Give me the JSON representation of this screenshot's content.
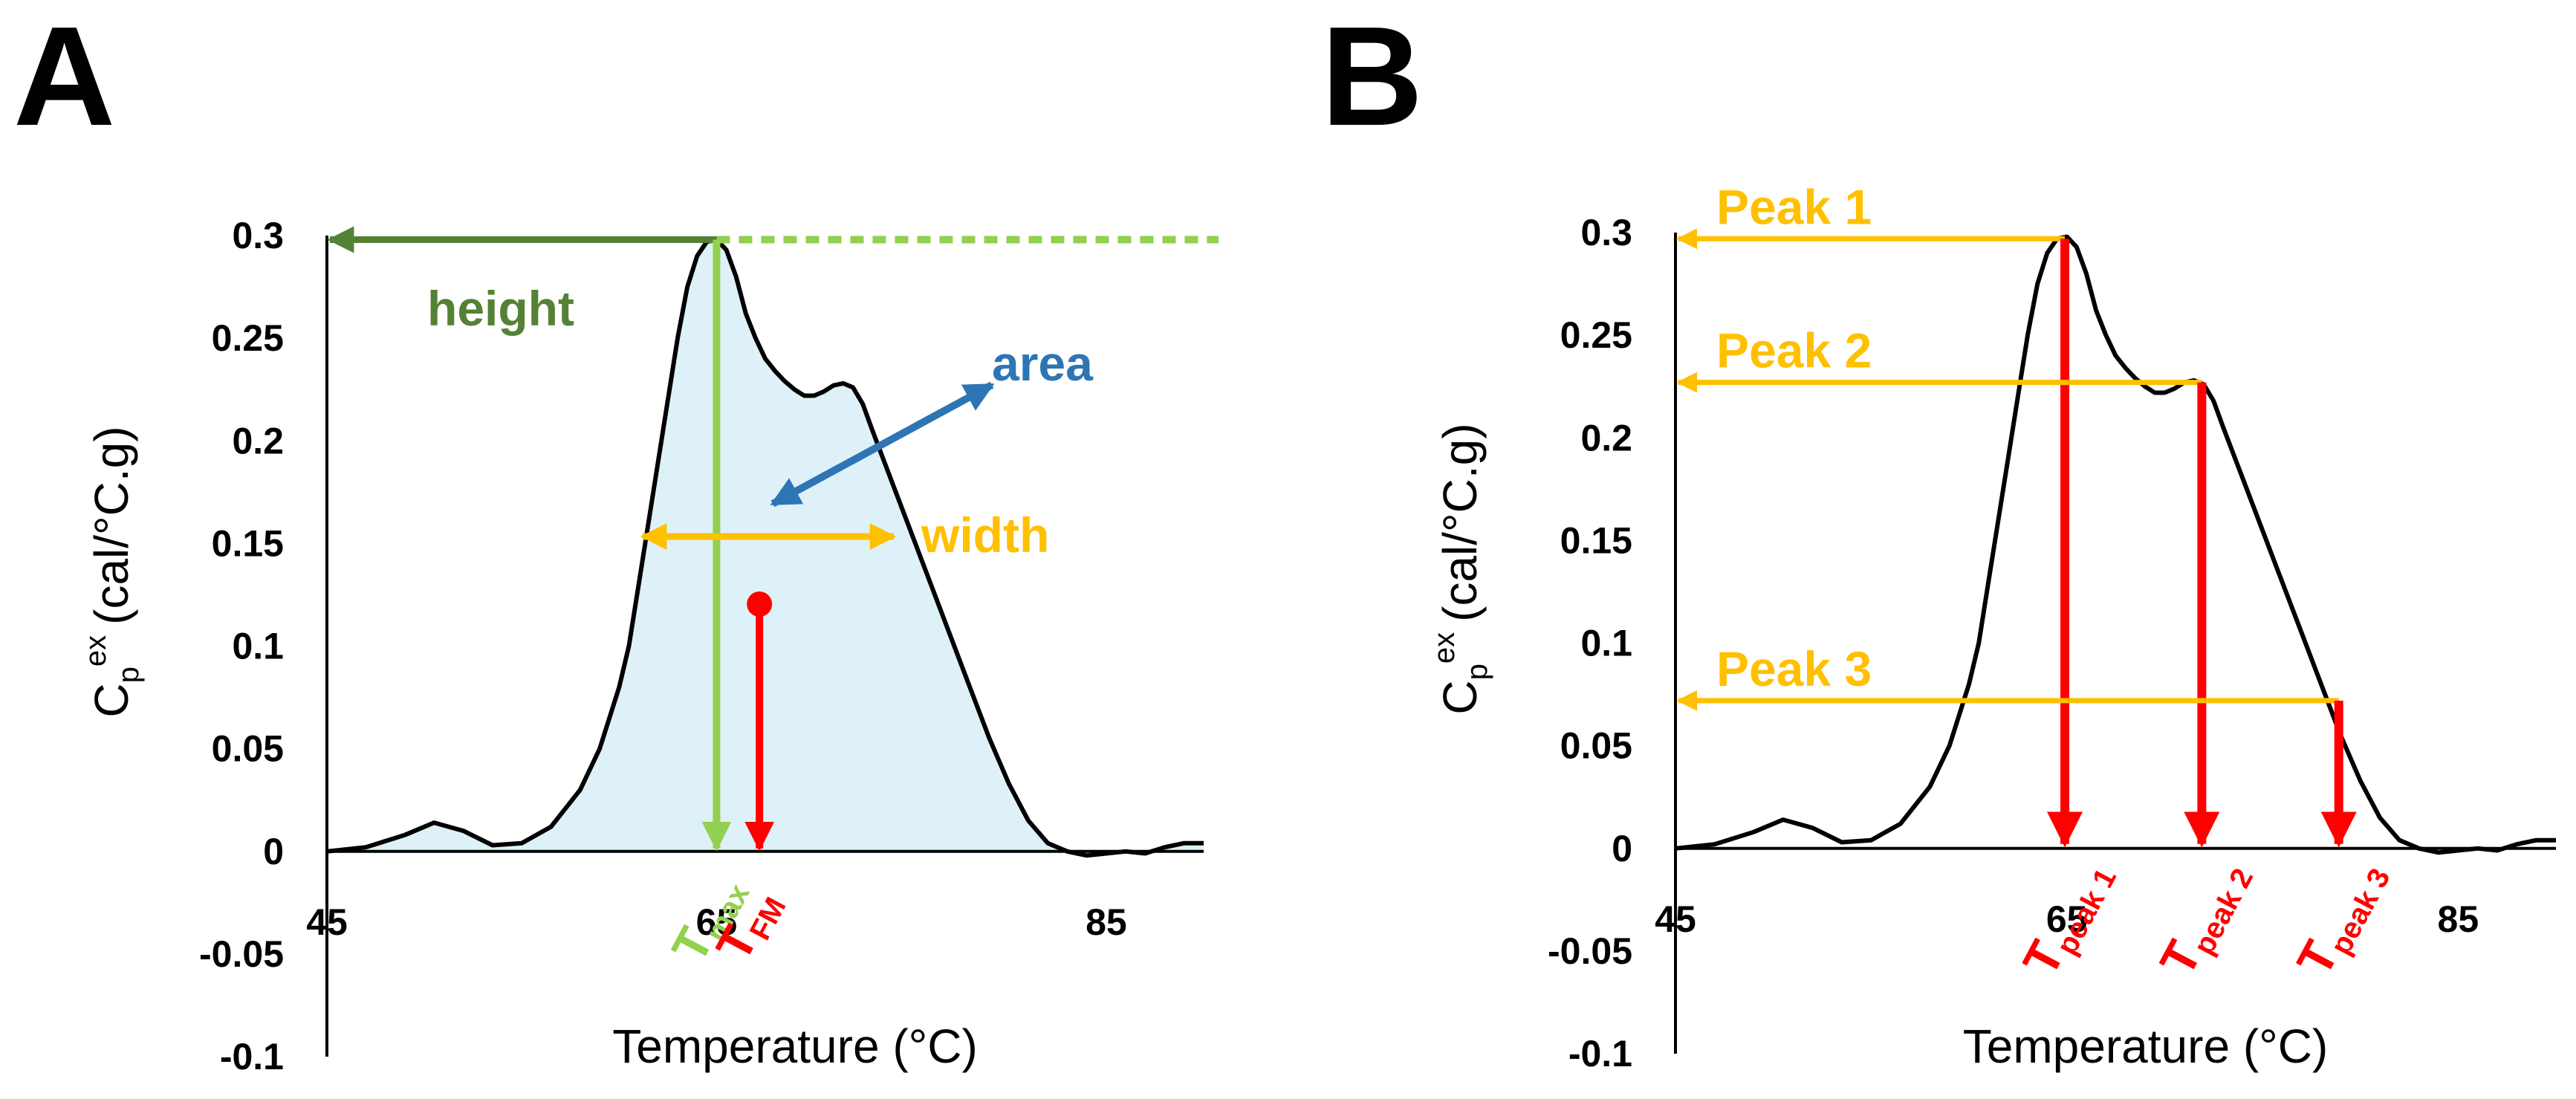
{
  "colors": {
    "curve": "#000000",
    "area_fill": "#dff1f8",
    "height": "#548235",
    "tmax": "#92d050",
    "area": "#2e75b6",
    "width": "#ffc000",
    "red": "#ff0000",
    "peak": "#ffc000"
  },
  "chart_data": [
    {
      "type": "line",
      "panel_label": "A",
      "xlabel": "Temperature (°C)",
      "ylabel": {
        "main": "C",
        "sub": "p",
        "sup": "ex",
        "units": "(cal/°C.g)"
      },
      "xlim": [
        45,
        90
      ],
      "ylim": [
        -0.1,
        0.3
      ],
      "xticks": [
        {
          "value": 45,
          "label": "45"
        },
        {
          "value": 65,
          "label": "65"
        },
        {
          "value": 85,
          "label": "85"
        }
      ],
      "yticks": [
        {
          "value": 0.3,
          "label": "0.3"
        },
        {
          "value": 0.25,
          "label": "0.25"
        },
        {
          "value": 0.2,
          "label": "0.2"
        },
        {
          "value": 0.15,
          "label": "0.15"
        },
        {
          "value": 0.1,
          "label": "0.1"
        },
        {
          "value": 0.05,
          "label": "0.05"
        },
        {
          "value": 0,
          "label": "0"
        },
        {
          "value": -0.05,
          "label": "-0.05"
        },
        {
          "value": -0.1,
          "label": "-0.1"
        }
      ],
      "grid": false,
      "series": [
        {
          "x": [
            45,
            47,
            49,
            50.5,
            52,
            53.5,
            55,
            56.5,
            58,
            59,
            60,
            60.5,
            61,
            61.5,
            62,
            62.5,
            63,
            63.5,
            64,
            64.5,
            65,
            65.5,
            66,
            66.5,
            67,
            67.5,
            68,
            68.5,
            69,
            69.5,
            70,
            70.5,
            71,
            71.5,
            72,
            72.5,
            73,
            74,
            75,
            76,
            77,
            78,
            79,
            80,
            81,
            82,
            83,
            84,
            85,
            86,
            87,
            88,
            89,
            90
          ],
          "y": [
            0,
            0.002,
            0.008,
            0.014,
            0.01,
            0.003,
            0.004,
            0.012,
            0.03,
            0.05,
            0.08,
            0.1,
            0.13,
            0.16,
            0.19,
            0.22,
            0.25,
            0.275,
            0.29,
            0.297,
            0.298,
            0.293,
            0.28,
            0.262,
            0.25,
            0.24,
            0.234,
            0.229,
            0.225,
            0.222,
            0.222,
            0.224,
            0.227,
            0.228,
            0.226,
            0.218,
            0.205,
            0.18,
            0.155,
            0.13,
            0.105,
            0.08,
            0.055,
            0.033,
            0.015,
            0.004,
            0,
            -0.002,
            -0.001,
            0,
            -0.001,
            0.002,
            0.004,
            0.004
          ]
        }
      ],
      "annotations": {
        "height": "height",
        "area": "area",
        "width": "width",
        "tmax": {
          "main": "T",
          "sub": "max"
        },
        "tfm": {
          "main": "T",
          "sub": "FM"
        }
      }
    },
    {
      "type": "line",
      "panel_label": "B",
      "xlabel": "Temperature (°C)",
      "ylabel": {
        "main": "C",
        "sub": "p",
        "sup": "ex",
        "units": "(cal/°C.g)"
      },
      "xlim": [
        45,
        90
      ],
      "ylim": [
        -0.1,
        0.3
      ],
      "xticks": [
        {
          "value": 45,
          "label": "45"
        },
        {
          "value": 65,
          "label": "65"
        },
        {
          "value": 85,
          "label": "85"
        }
      ],
      "yticks": [
        {
          "value": 0.3,
          "label": "0.3"
        },
        {
          "value": 0.25,
          "label": "0.25"
        },
        {
          "value": 0.2,
          "label": "0.2"
        },
        {
          "value": 0.15,
          "label": "0.15"
        },
        {
          "value": 0.1,
          "label": "0.1"
        },
        {
          "value": 0.05,
          "label": "0.05"
        },
        {
          "value": 0,
          "label": "0"
        },
        {
          "value": -0.05,
          "label": "-0.05"
        },
        {
          "value": -0.1,
          "label": "-0.1"
        }
      ],
      "grid": false,
      "series": [
        {
          "x": [
            45,
            47,
            49,
            50.5,
            52,
            53.5,
            55,
            56.5,
            58,
            59,
            60,
            60.5,
            61,
            61.5,
            62,
            62.5,
            63,
            63.5,
            64,
            64.5,
            65,
            65.5,
            66,
            66.5,
            67,
            67.5,
            68,
            68.5,
            69,
            69.5,
            70,
            70.5,
            71,
            71.5,
            72,
            72.5,
            73,
            74,
            75,
            76,
            77,
            78,
            79,
            80,
            81,
            82,
            83,
            84,
            85,
            86,
            87,
            88,
            89,
            90
          ],
          "y": [
            0,
            0.002,
            0.008,
            0.014,
            0.01,
            0.003,
            0.004,
            0.012,
            0.03,
            0.05,
            0.08,
            0.1,
            0.13,
            0.16,
            0.19,
            0.22,
            0.25,
            0.275,
            0.29,
            0.297,
            0.298,
            0.293,
            0.28,
            0.262,
            0.25,
            0.24,
            0.234,
            0.229,
            0.225,
            0.222,
            0.222,
            0.224,
            0.227,
            0.228,
            0.226,
            0.218,
            0.205,
            0.18,
            0.155,
            0.13,
            0.105,
            0.08,
            0.055,
            0.033,
            0.015,
            0.004,
            0,
            -0.002,
            -0.001,
            0,
            -0.001,
            0.002,
            0.004,
            0.004
          ]
        }
      ],
      "peaks": [
        {
          "label": "Peak 1",
          "x": 64.9,
          "y": 0.297,
          "tlabel": {
            "main": "T",
            "sub": "peak 1"
          }
        },
        {
          "label": "Peak 2",
          "x": 71.9,
          "y": 0.227,
          "tlabel": {
            "main": "T",
            "sub": "peak 2"
          }
        },
        {
          "label": "Peak 3",
          "x": 78.9,
          "y": 0.072,
          "tlabel": {
            "main": "T",
            "sub": "peak 3"
          }
        }
      ]
    }
  ]
}
